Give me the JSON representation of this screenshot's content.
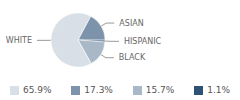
{
  "chart_data": {
    "type": "pie",
    "categories": [
      "WHITE",
      "ASIAN",
      "HISPANIC",
      "BLACK"
    ],
    "values": [
      65.9,
      17.3,
      1.1,
      15.7
    ],
    "value_labels": [
      "65.9%",
      "17.3%",
      "1.1%",
      "15.7%"
    ],
    "colors": [
      "#d9dfe6",
      "#7d93ab",
      "#2e5273",
      "#a9b8c7"
    ],
    "legend": "bottom"
  }
}
